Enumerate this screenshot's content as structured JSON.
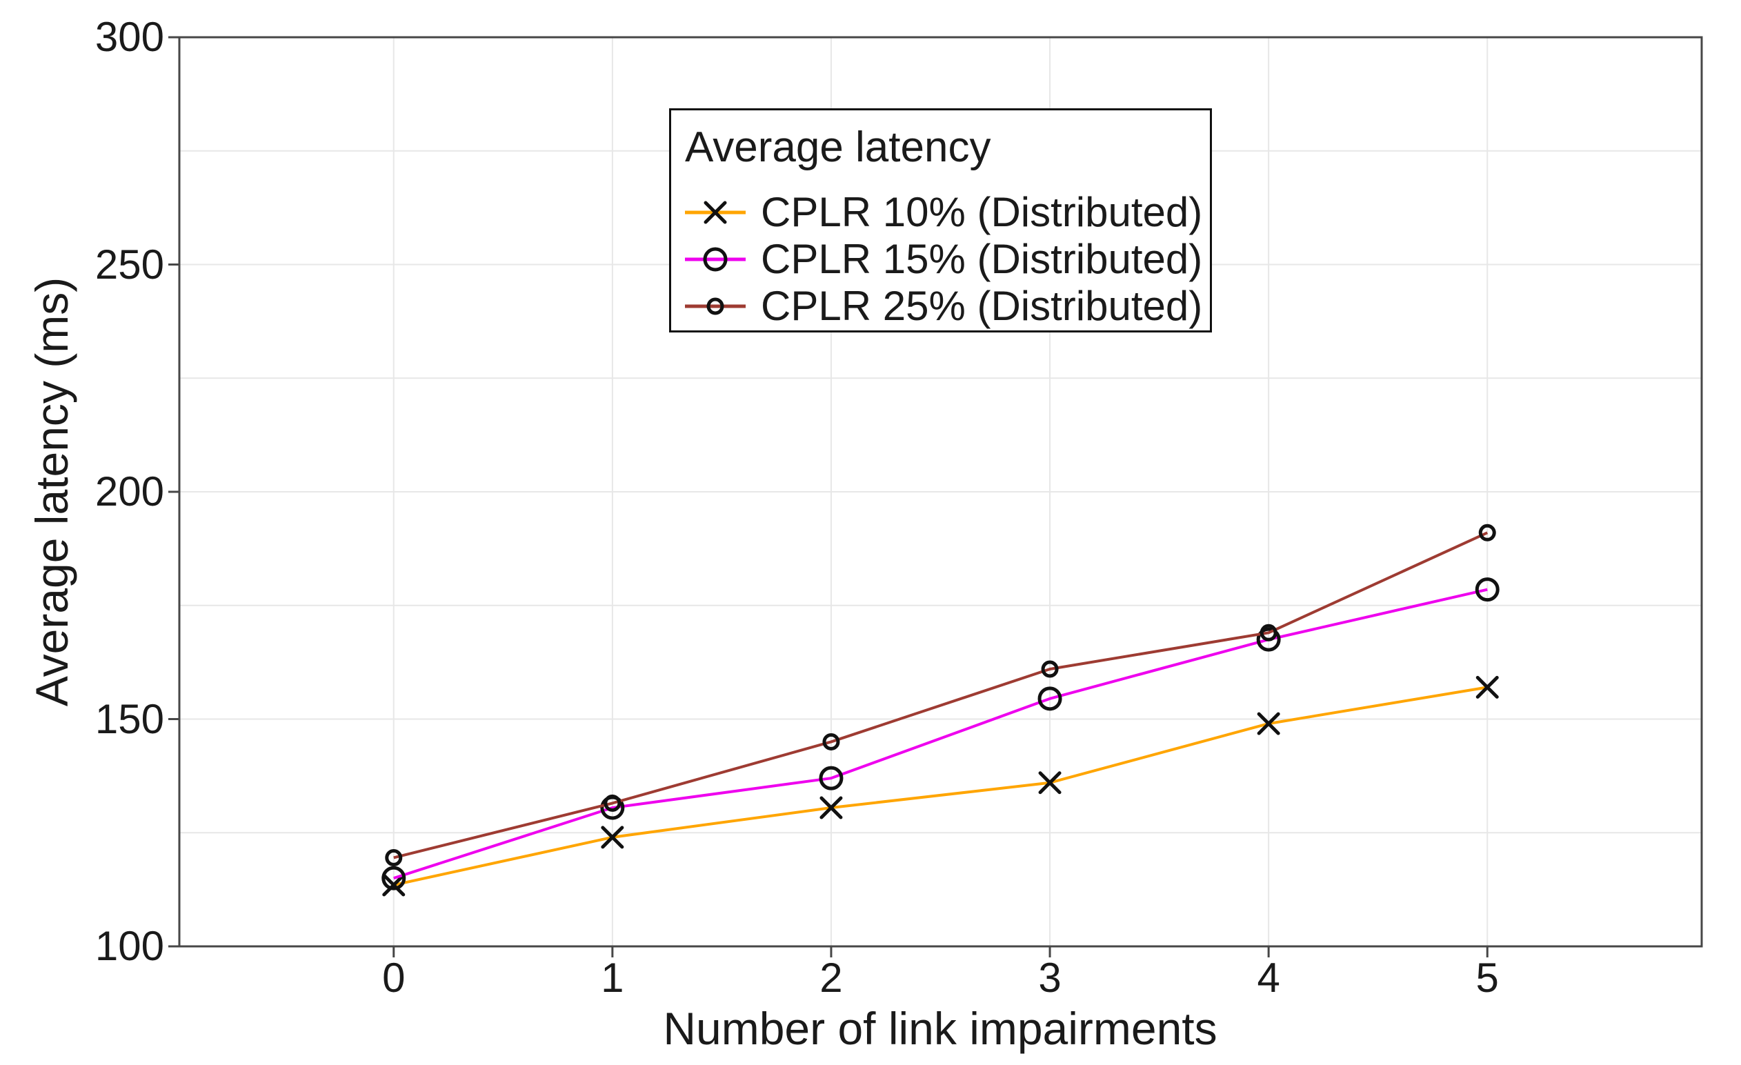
{
  "figure": {
    "background": "#ffffff",
    "text_color": "#1a1a1a",
    "axis_color": "#474747",
    "grid_color": "#e7e7e7"
  },
  "chart_data": {
    "type": "line",
    "title": "",
    "xlabel": "Number of link impairments",
    "ylabel": "Average latency (ms)",
    "x": [
      0,
      1,
      2,
      3,
      4,
      5
    ],
    "series": [
      {
        "name": "CPLR 10% (Distributed)",
        "color": "#FFA500",
        "marker": "x",
        "marker_color": "#111111",
        "values": [
          113.5,
          124,
          130.5,
          136,
          149,
          157
        ]
      },
      {
        "name": "CPLR 15% (Distributed)",
        "color": "#EE00EE",
        "marker": "circle-large",
        "marker_color": "#111111",
        "values": [
          115,
          130.5,
          137,
          154.5,
          167.5,
          178.5
        ]
      },
      {
        "name": "CPLR 25% (Distributed)",
        "color": "#9E3B32",
        "marker": "circle-small",
        "marker_color": "#111111",
        "values": [
          119.5,
          131.5,
          145,
          161,
          169,
          191
        ]
      }
    ],
    "xlim": [
      -0.98,
      5.98
    ],
    "ylim": [
      100,
      300
    ],
    "x_ticks": [
      "0",
      "1",
      "2",
      "3",
      "4",
      "5"
    ],
    "x_tick_values": [
      0,
      1,
      2,
      3,
      4,
      5
    ],
    "y_ticks": [
      "100",
      "150",
      "200",
      "250",
      "300"
    ],
    "y_tick_values": [
      100,
      150,
      200,
      250,
      300
    ],
    "x_gridline_values": [
      0,
      1,
      2,
      3,
      4,
      5
    ],
    "y_gridline_values": [
      125,
      150,
      175,
      200,
      225,
      250,
      275
    ],
    "grid": "on",
    "legend_title": "Average latency",
    "legend_position": "upper center-left, inside plot"
  }
}
